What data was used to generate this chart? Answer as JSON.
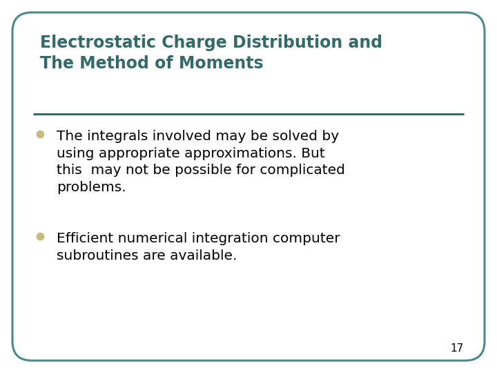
{
  "title_line1": "Electrostatic Charge Distribution and",
  "title_line2": "The Method of Moments",
  "title_color": "#336b6b",
  "title_fontsize": 17,
  "bullet_color": "#c8bc7a",
  "bullet_text_color": "#000000",
  "bullet_fontsize": 14.5,
  "bullets": [
    "The integrals involved may be solved by\nusing appropriate approximations. But\nthis  may not be possible for complicated\nproblems.",
    "Efficient numerical integration computer\nsubroutines are available."
  ],
  "separator_color": "#336b6b",
  "background_color": "#ffffff",
  "border_color": "#4a8a8a",
  "page_number": "17",
  "page_number_fontsize": 11,
  "page_number_color": "#000000",
  "fig_bg": "#ffffff"
}
